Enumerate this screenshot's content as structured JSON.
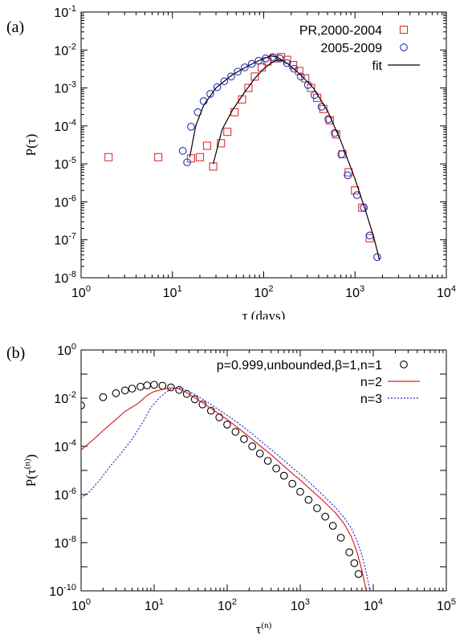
{
  "chart_data": [
    {
      "type": "scatter",
      "panel_label": "(a)",
      "xlabel": "τ (days)",
      "ylabel": "P(τ)",
      "xscale": "log",
      "yscale": "log",
      "xlim": [
        1,
        10000
      ],
      "ylim": [
        1e-08,
        0.1
      ],
      "x_tick_labels": [
        {
          "base": "10",
          "exp": "0",
          "value": 1
        },
        {
          "base": "10",
          "exp": "1",
          "value": 10
        },
        {
          "base": "10",
          "exp": "2",
          "value": 100
        },
        {
          "base": "10",
          "exp": "3",
          "value": 1000
        },
        {
          "base": "10",
          "exp": "4",
          "value": 10000
        }
      ],
      "y_tick_labels": [
        {
          "base": "10",
          "exp": "-8",
          "value": 1e-08
        },
        {
          "base": "10",
          "exp": "-7",
          "value": 1e-07
        },
        {
          "base": "10",
          "exp": "-6",
          "value": 1e-06
        },
        {
          "base": "10",
          "exp": "-5",
          "value": 1e-05
        },
        {
          "base": "10",
          "exp": "-4",
          "value": 0.0001
        },
        {
          "base": "10",
          "exp": "-3",
          "value": 0.001
        },
        {
          "base": "10",
          "exp": "-2",
          "value": 0.01
        },
        {
          "base": "10",
          "exp": "-1",
          "value": 0.1
        }
      ],
      "legend_position": "top-right",
      "series": [
        {
          "name": "PR,2000-2004",
          "marker": "square",
          "color": "#e03030",
          "points": [
            [
              2,
              1.5e-05
            ],
            [
              7,
              1.5e-05
            ],
            [
              16,
              1.4e-05
            ],
            [
              20,
              1.5e-05
            ],
            [
              24,
              3e-05
            ],
            [
              28,
              8.5e-06
            ],
            [
              34,
              3.5e-05
            ],
            [
              40,
              7e-05
            ],
            [
              48,
              0.00023
            ],
            [
              58,
              0.0005
            ],
            [
              68,
              0.001
            ],
            [
              80,
              0.002
            ],
            [
              95,
              0.0035
            ],
            [
              110,
              0.005
            ],
            [
              130,
              0.006
            ],
            [
              155,
              0.0065
            ],
            [
              180,
              0.0055
            ],
            [
              210,
              0.004
            ],
            [
              245,
              0.0028
            ],
            [
              285,
              0.0018
            ],
            [
              330,
              0.001
            ],
            [
              385,
              0.00055
            ],
            [
              450,
              0.00028
            ],
            [
              530,
              0.00014
            ],
            [
              620,
              6e-05
            ],
            [
              730,
              1.8e-05
            ],
            [
              850,
              6e-06
            ],
            [
              1000,
              2e-06
            ],
            [
              1200,
              7e-07
            ],
            [
              1450,
              1.1e-07
            ]
          ]
        },
        {
          "name": "2005-2009",
          "marker": "circle",
          "color": "#2030c0",
          "points": [
            [
              13,
              2.2e-05
            ],
            [
              14.5,
              1.1e-05
            ],
            [
              16,
              9.5e-05
            ],
            [
              19,
              0.00023
            ],
            [
              22,
              0.00045
            ],
            [
              26,
              0.0007
            ],
            [
              31,
              0.00105
            ],
            [
              37,
              0.0015
            ],
            [
              44,
              0.002
            ],
            [
              52,
              0.0027
            ],
            [
              62,
              0.0035
            ],
            [
              74,
              0.0043
            ],
            [
              88,
              0.0052
            ],
            [
              105,
              0.006
            ],
            [
              125,
              0.0065
            ],
            [
              150,
              0.006
            ],
            [
              180,
              0.0045
            ],
            [
              215,
              0.0032
            ],
            [
              255,
              0.002
            ],
            [
              305,
              0.0012
            ],
            [
              360,
              0.00065
            ],
            [
              430,
              0.00032
            ],
            [
              510,
              0.00015
            ],
            [
              600,
              6.5e-05
            ],
            [
              710,
              1.8e-05
            ],
            [
              830,
              5e-06
            ],
            [
              1050,
              1.5e-06
            ],
            [
              1250,
              7e-07
            ],
            [
              1450,
              1.3e-07
            ],
            [
              1750,
              3.5e-08
            ]
          ]
        },
        {
          "name": "fit",
          "line": "solid",
          "color": "#000000",
          "segments": [
            [
              [
                15.5,
                1.5e-05
              ],
              [
                18,
                0.0001
              ],
              [
                22,
                0.00035
              ],
              [
                30,
                0.001
              ],
              [
                45,
                0.0022
              ],
              [
                70,
                0.004
              ],
              [
                100,
                0.006
              ],
              [
                120,
                0.007
              ],
              [
                140,
                0.0065
              ],
              [
                180,
                0.0045
              ],
              [
                250,
                0.0023
              ],
              [
                350,
                0.001
              ],
              [
                500,
                0.00025
              ],
              [
                700,
                4e-05
              ],
              [
                1000,
                4e-06
              ],
              [
                1300,
                6e-07
              ],
              [
                1600,
                1.2e-07
              ],
              [
                1850,
                3e-08
              ]
            ],
            [
              [
                28,
                1e-05
              ],
              [
                35,
                8e-05
              ],
              [
                45,
                0.00025
              ],
              [
                60,
                0.0007
              ],
              [
                80,
                0.0018
              ],
              [
                100,
                0.0032
              ],
              [
                120,
                0.0045
              ],
              [
                140,
                0.0055
              ],
              [
                160,
                0.0053
              ]
            ]
          ]
        }
      ]
    },
    {
      "type": "line",
      "panel_label": "(b)",
      "xlabel": "τ",
      "xlabel_sup": "(n)",
      "ylabel": "P(τ",
      "ylabel_sup": "(n)",
      "ylabel_tail": ")",
      "xscale": "log",
      "yscale": "log",
      "xlim": [
        1,
        100000
      ],
      "ylim": [
        1e-10,
        1
      ],
      "x_tick_labels": [
        {
          "base": "10",
          "exp": "0",
          "value": 1
        },
        {
          "base": "10",
          "exp": "1",
          "value": 10
        },
        {
          "base": "10",
          "exp": "2",
          "value": 100
        },
        {
          "base": "10",
          "exp": "3",
          "value": 1000
        },
        {
          "base": "10",
          "exp": "4",
          "value": 10000
        },
        {
          "base": "10",
          "exp": "5",
          "value": 100000
        }
      ],
      "y_tick_labels": [
        {
          "base": "10",
          "exp": "-10",
          "value": 1e-10
        },
        {
          "base": "10",
          "exp": "-8",
          "value": 1e-08
        },
        {
          "base": "10",
          "exp": "-6",
          "value": 1e-06
        },
        {
          "base": "10",
          "exp": "-4",
          "value": 0.0001
        },
        {
          "base": "10",
          "exp": "-2",
          "value": 0.01
        },
        {
          "base": "10",
          "exp": "0",
          "value": 1
        }
      ],
      "legend_position": "top-right",
      "series": [
        {
          "name": "p=0.999,unbounded,β=1,n=1",
          "marker": "circle",
          "color": "#000000",
          "points": [
            [
              1,
              0.005
            ],
            [
              2,
              0.011
            ],
            [
              3,
              0.016
            ],
            [
              4,
              0.021
            ],
            [
              5,
              0.025
            ],
            [
              6.5,
              0.03
            ],
            [
              8,
              0.034
            ],
            [
              10,
              0.036
            ],
            [
              13,
              0.033
            ],
            [
              17,
              0.028
            ],
            [
              22,
              0.022
            ],
            [
              28,
              0.015
            ],
            [
              36,
              0.009
            ],
            [
              46,
              0.0055
            ],
            [
              60,
              0.003
            ],
            [
              78,
              0.0016
            ],
            [
              100,
              0.0008
            ],
            [
              130,
              0.0004
            ],
            [
              170,
              0.0002
            ],
            [
              220,
              0.0001
            ],
            [
              280,
              5e-05
            ],
            [
              360,
              2.5e-05
            ],
            [
              470,
              1.2e-05
            ],
            [
              600,
              6e-06
            ],
            [
              780,
              2.8e-06
            ],
            [
              1000,
              1.3e-06
            ],
            [
              1300,
              6e-07
            ],
            [
              1700,
              2.7e-07
            ],
            [
              2200,
              1.2e-07
            ],
            [
              2800,
              5e-08
            ],
            [
              3600,
              1.6e-08
            ],
            [
              4700,
              4e-09
            ],
            [
              5500,
              1.4e-09
            ],
            [
              6300,
              5e-10
            ]
          ]
        },
        {
          "name": "n=2",
          "line": "solid",
          "color": "#e02020",
          "points": [
            [
              1,
              7e-05
            ],
            [
              1.5,
              0.0002
            ],
            [
              2,
              0.00045
            ],
            [
              3,
              0.0013
            ],
            [
              4,
              0.0028
            ],
            [
              6,
              0.006
            ],
            [
              8,
              0.013
            ],
            [
              10,
              0.019
            ],
            [
              13,
              0.023
            ],
            [
              16,
              0.026
            ],
            [
              19,
              0.027
            ],
            [
              22,
              0.024
            ],
            [
              27,
              0.018
            ],
            [
              35,
              0.011
            ],
            [
              50,
              0.0055
            ],
            [
              70,
              0.0027
            ],
            [
              100,
              0.0013
            ],
            [
              150,
              0.0005
            ],
            [
              200,
              0.00025
            ],
            [
              300,
              9e-05
            ],
            [
              400,
              4.5e-05
            ],
            [
              600,
              1.5e-05
            ],
            [
              800,
              7e-06
            ],
            [
              1000,
              4e-06
            ],
            [
              1500,
              1.3e-06
            ],
            [
              2000,
              6e-07
            ],
            [
              3000,
              1.8e-07
            ],
            [
              4000,
              6e-08
            ],
            [
              5000,
              1.8e-08
            ],
            [
              6000,
              4e-09
            ],
            [
              7000,
              7e-10
            ],
            [
              8000,
              1e-10
            ]
          ]
        },
        {
          "name": "n=3",
          "line": "dotted",
          "color": "#2030d0",
          "points": [
            [
              1,
              7e-07
            ],
            [
              1.3,
              1.3e-06
            ],
            [
              1.8,
              4e-06
            ],
            [
              2.5,
              1.5e-05
            ],
            [
              3.5,
              5e-05
            ],
            [
              5,
              0.0002
            ],
            [
              7,
              0.001
            ],
            [
              9,
              0.004
            ],
            [
              12,
              0.011
            ],
            [
              15,
              0.019
            ],
            [
              18,
              0.026
            ],
            [
              21,
              0.027
            ],
            [
              25,
              0.024
            ],
            [
              30,
              0.019
            ],
            [
              40,
              0.012
            ],
            [
              55,
              0.0065
            ],
            [
              80,
              0.003
            ],
            [
              110,
              0.0016
            ],
            [
              160,
              0.0007
            ],
            [
              220,
              0.00033
            ],
            [
              300,
              0.00015
            ],
            [
              450,
              5.5e-05
            ],
            [
              600,
              2.6e-05
            ],
            [
              800,
              1.2e-05
            ],
            [
              1000,
              7e-06
            ],
            [
              1500,
              2.3e-06
            ],
            [
              2000,
              1e-06
            ],
            [
              3000,
              3e-07
            ],
            [
              4000,
              1.1e-07
            ],
            [
              5000,
              4e-08
            ],
            [
              6000,
              1.2e-08
            ],
            [
              7000,
              3e-09
            ],
            [
              8000,
              6e-10
            ],
            [
              9000,
              1e-10
            ]
          ]
        }
      ]
    }
  ]
}
